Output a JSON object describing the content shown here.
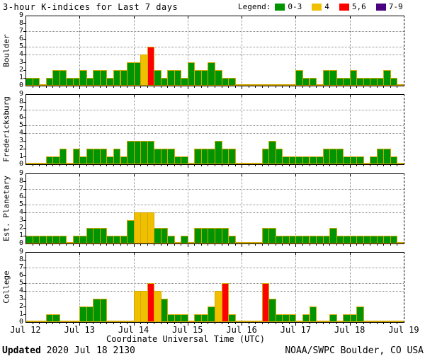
{
  "title": "3-hour K-indices for Last 7 days",
  "legend": {
    "label": "Legend:",
    "items": [
      {
        "label": "0-3",
        "color": "#009500"
      },
      {
        "label": "4",
        "color": "#F0C000"
      },
      {
        "label": "5,6",
        "color": "#FF0000"
      },
      {
        "label": "7-9",
        "color": "#4B0082"
      }
    ]
  },
  "footer": {
    "updated_label": "Updated",
    "updated_value": " 2020 Jul 18 2130",
    "source": "NOAA/SWPC Boulder, CO USA"
  },
  "chart_data": {
    "type": "bar",
    "title": "3-hour K-indices for Last 7 days",
    "xlabel": "Coordinate Universal Time (UTC)",
    "x_tick_labels": [
      "Jul 12",
      "Jul 13",
      "Jul 14",
      "Jul 15",
      "Jul 16",
      "Jul 17",
      "Jul 18",
      "Jul 19"
    ],
    "days": [
      "Jul 12",
      "Jul 13",
      "Jul 14",
      "Jul 15",
      "Jul 16",
      "Jul 17",
      "Jul 18"
    ],
    "bars_per_day": 8,
    "interval_hours": 3,
    "ylim": [
      0,
      9
    ],
    "y_ticks": [
      0,
      1,
      2,
      3,
      4,
      5,
      6,
      7,
      8,
      9
    ],
    "dotted_y_levels": [
      4,
      5,
      7
    ],
    "grid": "dotted",
    "legend_position": "top-right",
    "color_scale": {
      "0-3": "#009500",
      "4": "#F0C000",
      "5-6": "#FF0000",
      "7-9": "#4B0082"
    },
    "bar_outline_color": "#D2A800",
    "grid_color": "#888888",
    "panels": [
      {
        "station": "Boulder",
        "values": [
          1,
          1,
          0,
          1,
          2,
          2,
          1,
          1,
          2,
          1,
          2,
          2,
          1,
          2,
          2,
          3,
          3,
          4,
          5,
          2,
          1,
          2,
          2,
          1,
          3,
          2,
          2,
          3,
          2,
          1,
          1,
          0,
          0,
          0,
          0,
          0,
          0,
          0,
          0,
          0,
          2,
          1,
          1,
          0,
          2,
          2,
          1,
          1,
          2,
          1,
          1,
          1,
          1,
          2,
          1,
          0
        ]
      },
      {
        "station": "Fredericksburg",
        "values": [
          0,
          0,
          0,
          1,
          1,
          2,
          0,
          2,
          1,
          2,
          2,
          2,
          1,
          2,
          1,
          3,
          3,
          3,
          3,
          2,
          2,
          2,
          1,
          1,
          0,
          2,
          2,
          2,
          3,
          2,
          2,
          0,
          0,
          0,
          0,
          2,
          3,
          2,
          1,
          1,
          1,
          1,
          1,
          1,
          2,
          2,
          2,
          1,
          1,
          1,
          0,
          1,
          2,
          2,
          1,
          0
        ]
      },
      {
        "station": "Est. Planetary",
        "values": [
          1,
          1,
          1,
          1,
          1,
          1,
          0,
          1,
          1,
          2,
          2,
          2,
          1,
          1,
          1,
          3,
          4,
          4,
          4,
          2,
          2,
          1,
          0,
          1,
          0,
          2,
          2,
          2,
          2,
          2,
          1,
          0,
          0,
          0,
          0,
          2,
          2,
          1,
          1,
          1,
          1,
          1,
          1,
          1,
          1,
          2,
          1,
          1,
          1,
          1,
          1,
          1,
          1,
          1,
          1,
          0
        ]
      },
      {
        "station": "College",
        "values": [
          0,
          0,
          0,
          1,
          1,
          0,
          0,
          0,
          2,
          2,
          3,
          3,
          0,
          0,
          0,
          0,
          4,
          4,
          5,
          4,
          3,
          1,
          1,
          1,
          0,
          1,
          1,
          2,
          4,
          5,
          1,
          0,
          0,
          0,
          0,
          5,
          3,
          1,
          1,
          1,
          0,
          1,
          2,
          0,
          0,
          1,
          0,
          1,
          1,
          2,
          0,
          0,
          0,
          0,
          0,
          0
        ]
      }
    ]
  }
}
